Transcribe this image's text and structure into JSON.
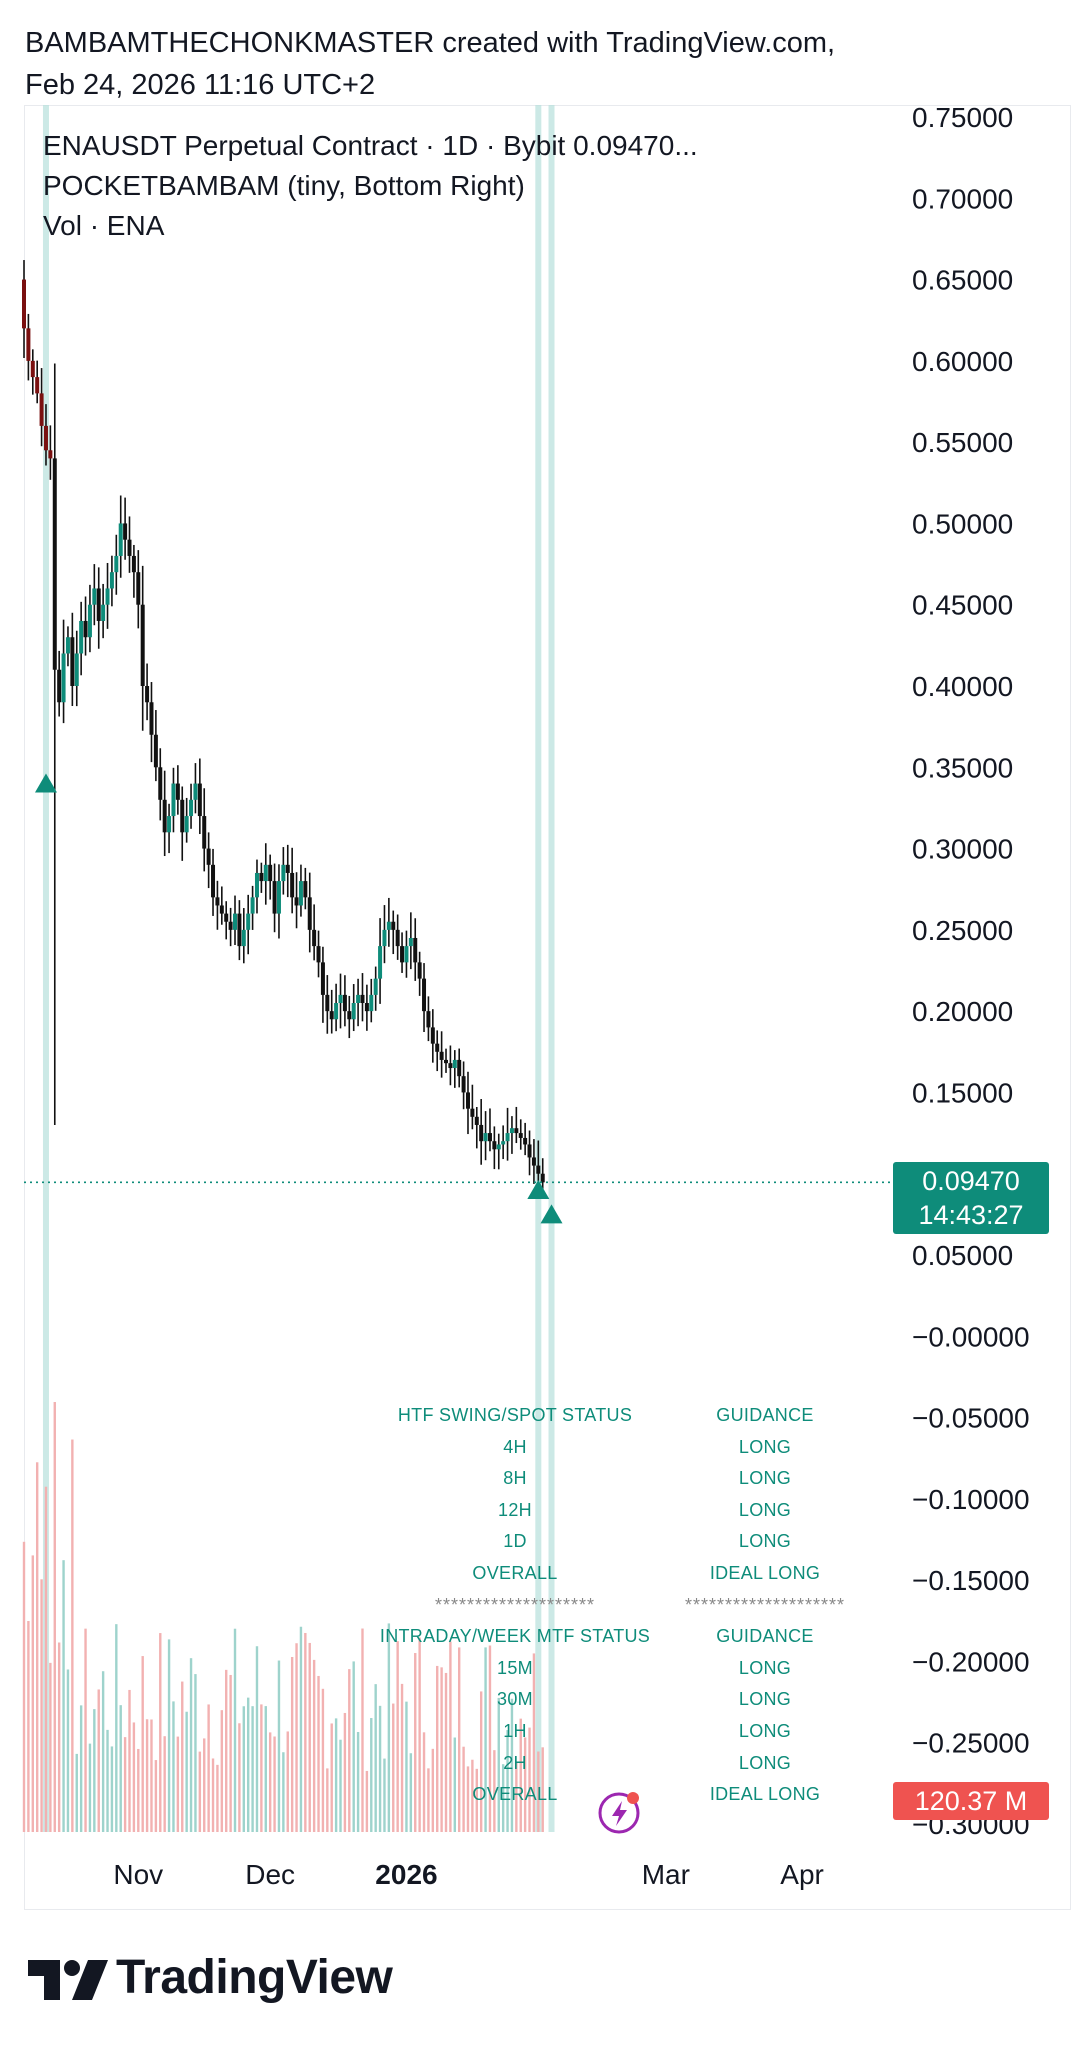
{
  "header": {
    "line1": "BAMBAMTHECHONKMASTER created with TradingView.com,",
    "line2": "Feb 24, 2026 11:16 UTC+2"
  },
  "legend": {
    "symbol_line": "ENAUSDT Perpetual Contract · 1D · Bybit  0.09470...",
    "indicator_line": "POCKETBAMBAM (tiny, Bottom Right)",
    "volume_line": "Vol · ENA"
  },
  "price_tag": {
    "price": "0.09470",
    "countdown": "14:43:27"
  },
  "volume_tag": {
    "value": "120.37 M"
  },
  "status_table": {
    "rows": [
      {
        "left": "HTF SWING/SPOT STATUS",
        "right": "GUIDANCE"
      },
      {
        "left": "4H",
        "right": "LONG"
      },
      {
        "left": "8H",
        "right": "LONG"
      },
      {
        "left": "12H",
        "right": "LONG"
      },
      {
        "left": "1D",
        "right": "LONG"
      },
      {
        "left": "OVERALL",
        "right": "IDEAL LONG"
      },
      {
        "left": "********************",
        "right": "********************"
      },
      {
        "left": "INTRADAY/WEEK MTF STATUS",
        "right": "GUIDANCE"
      },
      {
        "left": "15M",
        "right": "LONG"
      },
      {
        "left": "30M",
        "right": "LONG"
      },
      {
        "left": "1H",
        "right": "LONG"
      },
      {
        "left": "2H",
        "right": "LONG"
      },
      {
        "left": "OVERALL",
        "right": "IDEAL LONG"
      }
    ]
  },
  "footer": {
    "brand": "TradingView"
  },
  "colors": {
    "up": "#0e8c7a",
    "down": "#111111",
    "early_down": "#7a1010",
    "vol_up": "#9ed3cc",
    "vol_down": "#f2b1b1",
    "marker_line": "#b7e0dc",
    "accent_red": "#ef5350"
  },
  "chart_data": {
    "type": "candlestick",
    "symbol": "ENAUSDT Perpetual Contract",
    "interval": "1D",
    "exchange": "Bybit",
    "last_price": 0.0947,
    "y_axis": {
      "ticks": [
        "0.75000",
        "0.70000",
        "0.65000",
        "0.60000",
        "0.55000",
        "0.50000",
        "0.45000",
        "0.40000",
        "0.35000",
        "0.30000",
        "0.25000",
        "0.20000",
        "0.15000",
        "0.05000",
        "−0.00000",
        "−0.05000",
        "−0.10000",
        "−0.15000",
        "−0.20000",
        "−0.25000",
        "−0.30000"
      ],
      "tick_values": [
        0.75,
        0.7,
        0.65,
        0.6,
        0.55,
        0.5,
        0.45,
        0.4,
        0.35,
        0.3,
        0.25,
        0.2,
        0.15,
        0.05,
        0.0,
        -0.05,
        -0.1,
        -0.15,
        -0.2,
        -0.25,
        -0.3
      ],
      "range": [
        -0.3,
        0.75
      ]
    },
    "x_axis": {
      "ticks": [
        {
          "label": "Nov",
          "date": "2025-11-01",
          "bold": false
        },
        {
          "label": "Dec",
          "date": "2025-12-01",
          "bold": false
        },
        {
          "label": "2026",
          "date": "2026-01-01",
          "bold": true
        },
        {
          "label": "Mar",
          "date": "2026-03-01",
          "bold": false
        },
        {
          "label": "Apr",
          "date": "2026-04-01",
          "bold": false
        }
      ],
      "range": [
        "2025-10-06",
        "2026-04-21"
      ]
    },
    "first_date": "2025-10-06",
    "series": [
      {
        "name": "ENAUSDT",
        "type": "candles",
        "close": [
          0.62,
          0.6,
          0.59,
          0.58,
          0.56,
          0.545,
          0.54,
          0.41,
          0.39,
          0.42,
          0.43,
          0.4,
          0.42,
          0.44,
          0.43,
          0.45,
          0.46,
          0.44,
          0.45,
          0.46,
          0.47,
          0.48,
          0.5,
          0.49,
          0.48,
          0.47,
          0.45,
          0.4,
          0.39,
          0.37,
          0.35,
          0.33,
          0.31,
          0.32,
          0.34,
          0.33,
          0.31,
          0.32,
          0.33,
          0.34,
          0.32,
          0.3,
          0.29,
          0.27,
          0.265,
          0.26,
          0.255,
          0.25,
          0.26,
          0.24,
          0.25,
          0.26,
          0.27,
          0.285,
          0.28,
          0.29,
          0.28,
          0.26,
          0.28,
          0.29,
          0.285,
          0.27,
          0.265,
          0.28,
          0.27,
          0.25,
          0.24,
          0.23,
          0.21,
          0.2,
          0.195,
          0.205,
          0.21,
          0.2,
          0.195,
          0.205,
          0.21,
          0.205,
          0.2,
          0.21,
          0.22,
          0.24,
          0.25,
          0.255,
          0.25,
          0.24,
          0.23,
          0.24,
          0.245,
          0.23,
          0.22,
          0.2,
          0.19,
          0.18,
          0.175,
          0.17,
          0.168,
          0.165,
          0.17,
          0.16,
          0.15,
          0.14,
          0.135,
          0.13,
          0.12,
          0.125,
          0.12,
          0.115,
          0.118,
          0.12,
          0.125,
          0.128,
          0.125,
          0.122,
          0.118,
          0.11,
          0.105,
          0.1,
          0.0947
        ],
        "open_offset_note": ""
      }
    ],
    "volume": {
      "name": "Vol · ENA",
      "last": "120.37 M"
    },
    "signal_markers": [
      {
        "date": "2025-10-11",
        "price": 0.34,
        "type": "triangle-up"
      },
      {
        "date": "2026-01-31",
        "price": 0.09,
        "type": "triangle-up"
      },
      {
        "date": "2026-02-03",
        "price": 0.075,
        "type": "triangle-up"
      }
    ],
    "vertical_markers": [
      "2025-10-11",
      "2026-01-31",
      "2026-02-03"
    ],
    "grid": false,
    "legend_position": "top-left"
  }
}
